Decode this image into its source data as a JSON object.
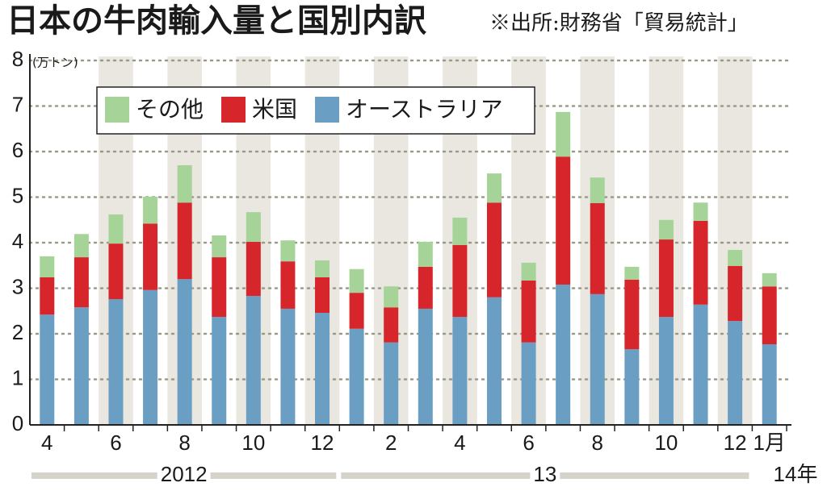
{
  "chart_data": {
    "type": "stacked-bar",
    "title": "日本の牛肉輸入量と国別内訳",
    "source": "※出所:財務省「貿易統計」",
    "ylabel": "(万トン)",
    "categories": [
      "4",
      null,
      "6",
      null,
      "8",
      null,
      "10",
      null,
      "12",
      null,
      "2",
      null,
      "4",
      null,
      "6",
      null,
      "8",
      null,
      "10",
      null,
      "12",
      "1月"
    ],
    "year_labels": [
      "2012",
      "13",
      "14年"
    ],
    "series": [
      {
        "name": "その他",
        "color": "#a5d398",
        "values": [
          0.46,
          0.51,
          0.64,
          0.59,
          0.82,
          0.48,
          0.65,
          0.46,
          0.37,
          0.52,
          0.46,
          0.55,
          0.6,
          0.64,
          0.39,
          0.98,
          0.56,
          0.28,
          0.43,
          0.4,
          0.35,
          0.29
        ]
      },
      {
        "name": "米国",
        "color": "#d7262b",
        "values": [
          0.82,
          1.1,
          1.22,
          1.46,
          1.68,
          1.31,
          1.19,
          1.04,
          0.78,
          0.79,
          0.77,
          0.92,
          1.58,
          2.08,
          1.36,
          2.81,
          2.0,
          1.53,
          1.7,
          1.84,
          1.21,
          1.27
        ]
      },
      {
        "name": "オーストラリア",
        "color": "#6b9ec3",
        "values": [
          2.42,
          2.58,
          2.76,
          2.96,
          3.2,
          2.37,
          2.83,
          2.55,
          2.46,
          2.11,
          1.81,
          2.55,
          2.37,
          2.8,
          1.81,
          3.08,
          2.87,
          1.66,
          2.37,
          2.64,
          2.28,
          1.77
        ]
      }
    ],
    "ylim": [
      0,
      8
    ],
    "yticks": [
      0,
      1,
      2,
      3,
      4,
      5,
      6,
      7,
      8
    ],
    "grid": true
  }
}
